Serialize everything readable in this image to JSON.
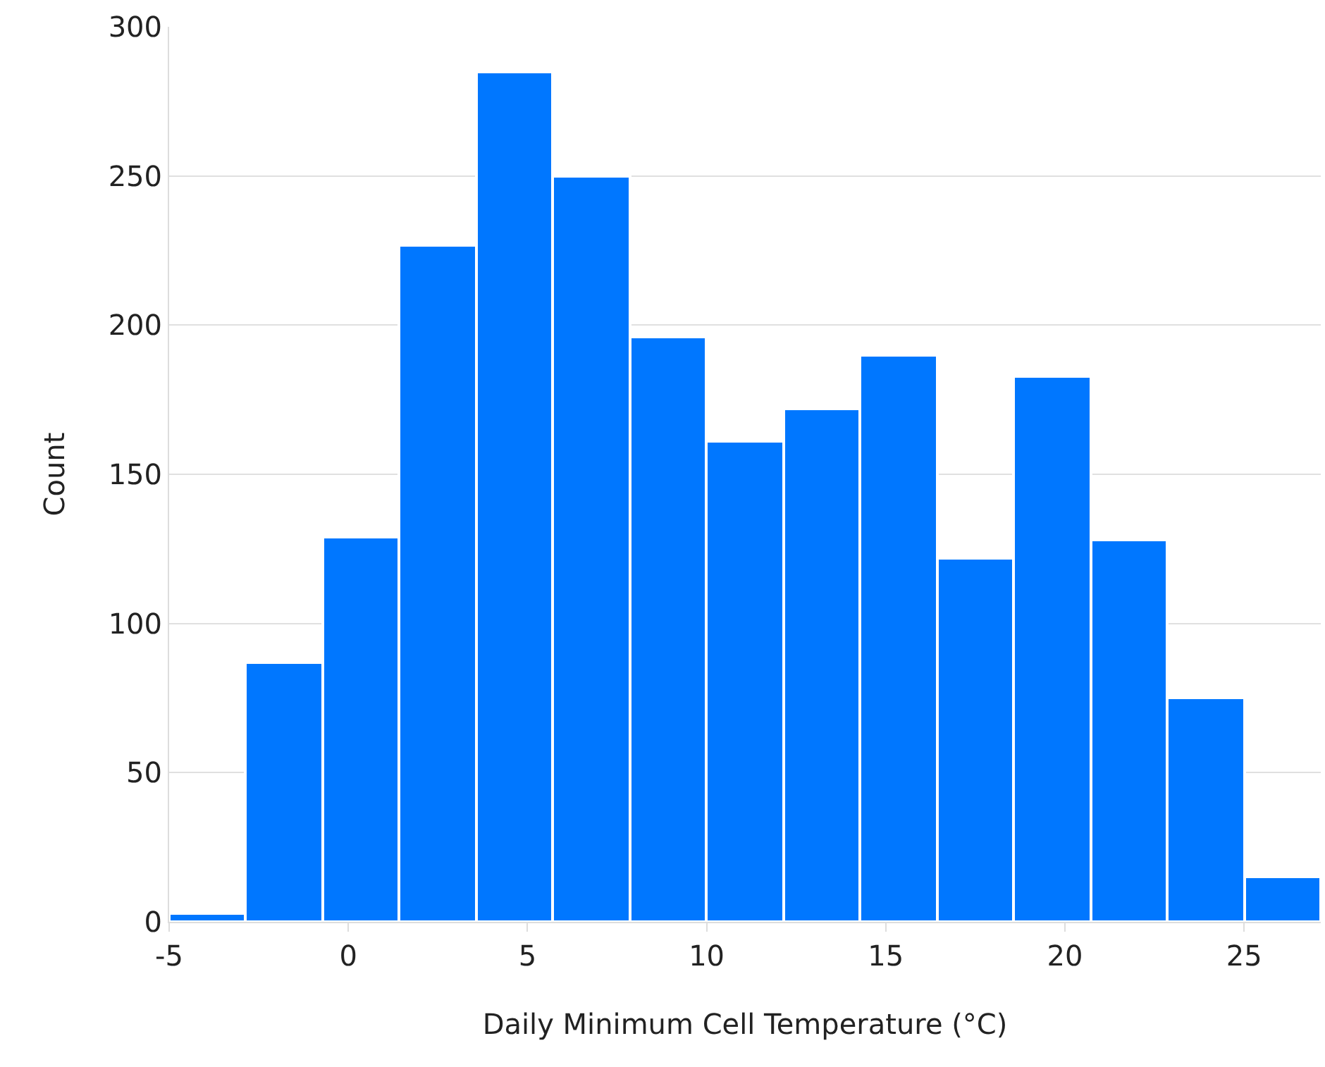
{
  "chart_data": {
    "type": "histogram",
    "xlabel": "Daily Minimum Cell Temperature (°C)",
    "ylabel": "Count",
    "bins": [
      -5,
      -2.86,
      -0.71,
      1.43,
      3.57,
      5.71,
      7.86,
      10,
      12.14,
      14.29,
      16.43,
      18.57,
      20.71,
      22.86,
      25,
      27.14
    ],
    "values": [
      3,
      87,
      129,
      227,
      285,
      250,
      196,
      161,
      172,
      190,
      122,
      183,
      128,
      75,
      15
    ],
    "color": "#0077ff",
    "xlim": [
      -5,
      27.14
    ],
    "xticks": [
      -5,
      0,
      5,
      10,
      15,
      20,
      25
    ],
    "ylim": [
      0,
      300
    ],
    "yticks": [
      0,
      50,
      100,
      150,
      200,
      250,
      300
    ],
    "grid": "y"
  }
}
